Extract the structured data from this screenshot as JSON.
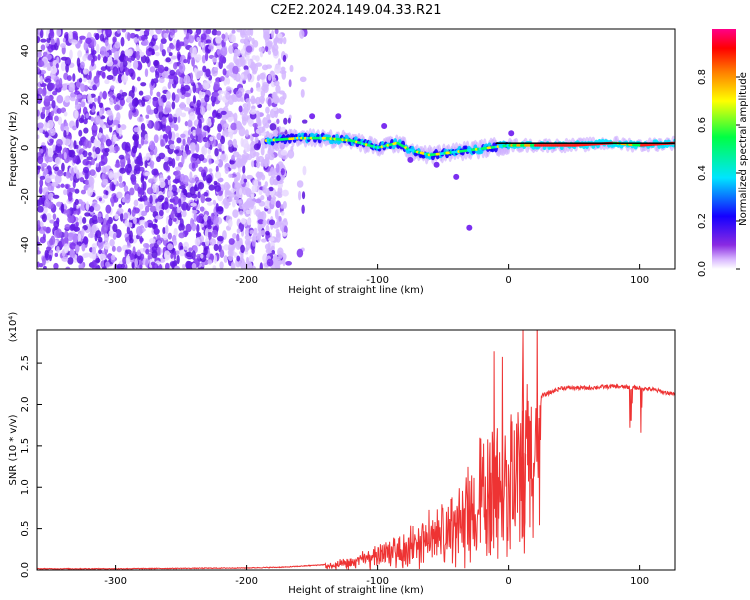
{
  "title": "C2E2.2024.149.04.33.R21",
  "chart_data": [
    {
      "type": "heatmap",
      "xlabel": "Height of straight line (km)",
      "ylabel": "Frequency (Hz)",
      "xlim": [
        -360,
        127
      ],
      "ylim": [
        -50,
        49
      ],
      "x_ticks": [
        -300,
        -200,
        -100,
        0,
        100
      ],
      "x_tick_labels": [
        "-300",
        "-200",
        "-100",
        "0",
        "100"
      ],
      "y_ticks": [
        -40,
        -20,
        0,
        20,
        40
      ],
      "y_tick_labels": [
        "-40",
        "-20",
        "0",
        "20",
        "40"
      ],
      "noise_region_km": [
        -360,
        -170
      ],
      "main_line": {
        "x": [
          -185,
          -160,
          -140,
          -120,
          -100,
          -85,
          -75,
          -60,
          -45,
          -30,
          -15,
          0,
          20,
          50,
          80,
          100,
          127
        ],
        "y": [
          3,
          4,
          4,
          3,
          0,
          2,
          -1,
          -3,
          -2,
          -1,
          0,
          1,
          1,
          1,
          2,
          1,
          2
        ]
      },
      "colorbar": {
        "label": "Normalized spectral amplitude",
        "range": [
          0.0,
          1.0
        ],
        "ticks": [
          0.0,
          0.2,
          0.4,
          0.6,
          0.8
        ],
        "tick_labels": [
          "0.0",
          "0.2",
          "0.4",
          "0.6",
          "0.8"
        ],
        "colormap": [
          "#ffffff",
          "#d9b8ff",
          "#8a2be2",
          "#1400ff",
          "#00e5ff",
          "#00ff44",
          "#ffff00",
          "#ff7f00",
          "#ff0000",
          "#ff0088"
        ]
      }
    },
    {
      "type": "line",
      "xlabel": "Height of straight line (km)",
      "ylabel": "SNR (10 * v/v)",
      "yscale_label": "(x10⁴)",
      "xlim": [
        -360,
        127
      ],
      "ylim": [
        0.0,
        2.9
      ],
      "x_ticks": [
        -300,
        -200,
        -100,
        0,
        100
      ],
      "x_tick_labels": [
        "-300",
        "-200",
        "-100",
        "0",
        "100"
      ],
      "y_ticks": [
        0.0,
        0.5,
        1.0,
        1.5,
        2.0,
        2.5
      ],
      "y_tick_labels": [
        "0.0",
        "0.5",
        "1.0",
        "1.5",
        "2.0",
        "2.5"
      ],
      "series": [
        {
          "name": "SNR",
          "color": "#ee3333",
          "x": [
            -360,
            -300,
            -200,
            -170,
            -140,
            -120,
            -100,
            -80,
            -60,
            -40,
            -30,
            -20,
            -10,
            0,
            10,
            15,
            25,
            40,
            60,
            80,
            100,
            110,
            127
          ],
          "y": [
            0.01,
            0.01,
            0.02,
            0.03,
            0.06,
            0.12,
            0.25,
            0.35,
            0.55,
            0.75,
            1.0,
            1.3,
            1.45,
            1.5,
            1.6,
            1.9,
            2.1,
            2.2,
            2.2,
            2.22,
            2.2,
            2.18,
            2.12
          ]
        }
      ]
    }
  ]
}
